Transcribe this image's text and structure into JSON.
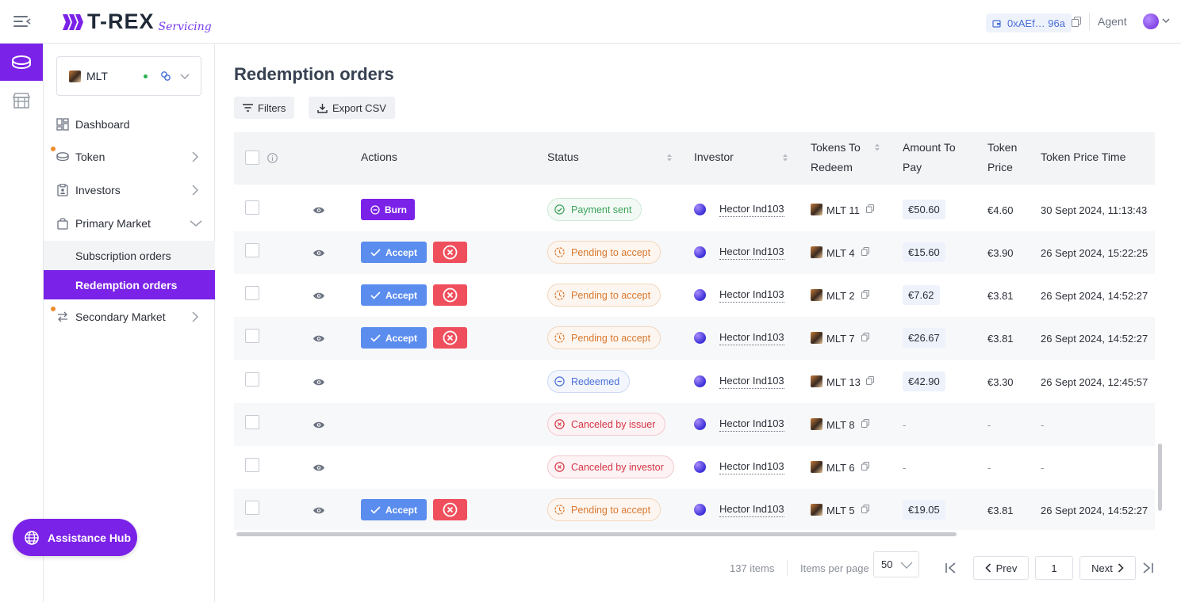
{
  "header": {
    "brand": "T-REX",
    "brand_sub": "Servicing",
    "wallet": "0xAEf… 96a",
    "role": "Agent"
  },
  "sidebar": {
    "token_name": "MLT",
    "items": [
      {
        "label": "Dashboard"
      },
      {
        "label": "Token"
      },
      {
        "label": "Investors"
      },
      {
        "label": "Primary Market"
      },
      {
        "label": "Subscription orders"
      },
      {
        "label": "Redemption orders"
      },
      {
        "label": "Secondary Market"
      }
    ],
    "assist_label": "Assistance Hub"
  },
  "main": {
    "title": "Redemption orders",
    "filters_label": "Filters",
    "export_label": "Export CSV",
    "columns": {
      "actions": "Actions",
      "status": "Status",
      "investor": "Investor",
      "tokens_1": "Tokens To",
      "tokens_2": "Redeem",
      "amount_1": "Amount To",
      "amount_2": "Pay",
      "price_1": "Token",
      "price_2": "Price",
      "time": "Token Price Time"
    },
    "buttons": {
      "burn": "Burn",
      "accept": "Accept"
    },
    "rows": [
      {
        "action": "burn",
        "status": "Payment sent",
        "status_kind": "sent",
        "investor": "Hector Ind103",
        "token": "MLT 11",
        "amount": "€50.60",
        "price": "€4.60",
        "time": "30 Sept 2024, 11:13:43"
      },
      {
        "action": "accept",
        "status": "Pending to accept",
        "status_kind": "pending",
        "investor": "Hector Ind103",
        "token": "MLT 4",
        "amount": "€15.60",
        "price": "€3.90",
        "time": "26 Sept 2024, 15:22:25"
      },
      {
        "action": "accept",
        "status": "Pending to accept",
        "status_kind": "pending",
        "investor": "Hector Ind103",
        "token": "MLT 2",
        "amount": "€7.62",
        "price": "€3.81",
        "time": "26 Sept 2024, 14:52:27"
      },
      {
        "action": "accept",
        "status": "Pending to accept",
        "status_kind": "pending",
        "investor": "Hector Ind103",
        "token": "MLT 7",
        "amount": "€26.67",
        "price": "€3.81",
        "time": "26 Sept 2024, 14:52:27"
      },
      {
        "action": "none",
        "status": "Redeemed",
        "status_kind": "redeemed",
        "investor": "Hector Ind103",
        "token": "MLT 13",
        "amount": "€42.90",
        "price": "€3.30",
        "time": "26 Sept 2024, 12:45:57"
      },
      {
        "action": "none",
        "status": "Canceled by issuer",
        "status_kind": "canceled",
        "investor": "Hector Ind103",
        "token": "MLT 8",
        "amount": "-",
        "price": "-",
        "time": "-"
      },
      {
        "action": "none",
        "status": "Canceled by investor",
        "status_kind": "canceled",
        "investor": "Hector Ind103",
        "token": "MLT 6",
        "amount": "-",
        "price": "-",
        "time": "-"
      },
      {
        "action": "accept",
        "status": "Pending to accept",
        "status_kind": "pending",
        "investor": "Hector Ind103",
        "token": "MLT 5",
        "amount": "€19.05",
        "price": "€3.81",
        "time": "26 Sept 2024, 14:52:27"
      }
    ]
  },
  "pagination": {
    "total": "137 items",
    "per_page_label": "Items per page",
    "per_page": "50",
    "prev": "Prev",
    "page": "1",
    "next": "Next"
  },
  "colors": {
    "accent": "#7b22e8",
    "accept": "#5b8def",
    "reject": "#ef4f5d"
  }
}
